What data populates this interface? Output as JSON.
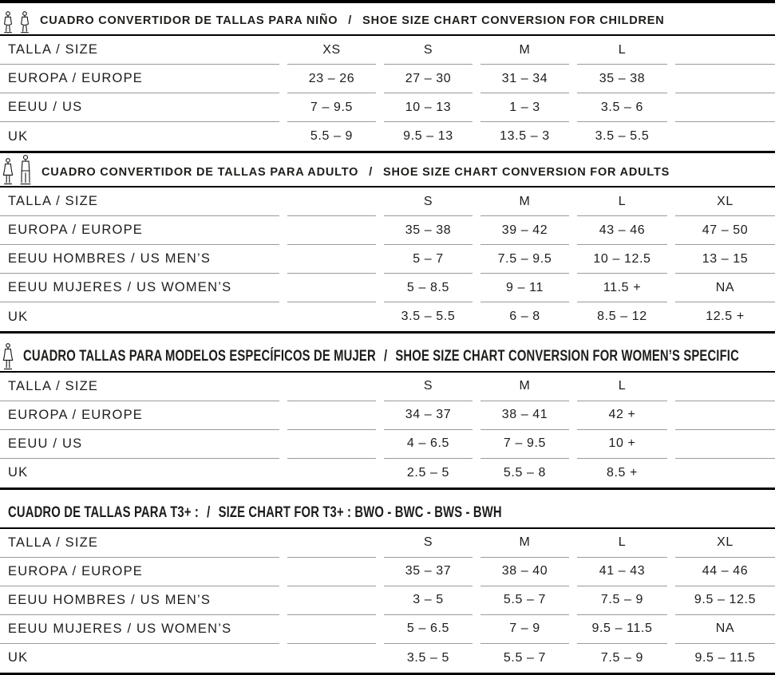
{
  "page": {
    "background": "#ffffff",
    "text_color": "#1d1d1b",
    "separator_color": "#9a9a9a",
    "divider_color": "#000000"
  },
  "sections": [
    {
      "id": "children",
      "icons": [
        "child-mannequin-icon",
        "child-mannequin-icon"
      ],
      "title_es": "CUADRO CONVERTIDOR DE TALLAS PARA NIÑO",
      "separator": "/",
      "title_en": "SHOE SIZE CHART CONVERSION FOR CHILDREN",
      "condensed": false,
      "rows": [
        {
          "label": "TALLA / SIZE",
          "values": [
            "XS",
            "S",
            "M",
            "L",
            ""
          ]
        },
        {
          "label": "EUROPA / EUROPE",
          "values": [
            "23 – 26",
            "27 – 30",
            "31 – 34",
            "35 – 38",
            ""
          ]
        },
        {
          "label": "EEUU / US",
          "values": [
            "7 – 9.5",
            "10 – 13",
            "1 – 3",
            "3.5 – 6",
            ""
          ]
        },
        {
          "label": "UK",
          "values": [
            "5.5 – 9",
            "9.5 – 13",
            "13.5 – 3",
            "3.5 – 5.5",
            ""
          ]
        }
      ]
    },
    {
      "id": "adults",
      "icons": [
        "woman-mannequin-icon",
        "man-mannequin-icon"
      ],
      "title_es": "CUADRO CONVERTIDOR DE TALLAS PARA ADULTO",
      "separator": "/",
      "title_en": "SHOE SIZE CHART CONVERSION FOR ADULTS",
      "condensed": false,
      "rows": [
        {
          "label": "TALLA / SIZE",
          "values": [
            "",
            "S",
            "M",
            "L",
            "XL"
          ]
        },
        {
          "label": "EUROPA / EUROPE",
          "values": [
            "",
            "35 – 38",
            "39 – 42",
            "43 – 46",
            "47 – 50"
          ]
        },
        {
          "label": "EEUU HOMBRES / US MEN’S",
          "values": [
            "",
            "5 – 7",
            "7.5 – 9.5",
            "10 – 12.5",
            "13 – 15"
          ]
        },
        {
          "label": "EEUU MUJERES / US WOMEN’S",
          "values": [
            "",
            "5 – 8.5",
            "9 – 11",
            "11.5 +",
            "NA"
          ]
        },
        {
          "label": "UK",
          "values": [
            "",
            "3.5 – 5.5",
            "6 – 8",
            "8.5 – 12",
            "12.5 +"
          ]
        }
      ]
    },
    {
      "id": "women-specific",
      "icons": [
        "woman-mannequin-icon"
      ],
      "title_es": "CUADRO TALLAS PARA MODELOS ESPECÍFICOS DE MUJER",
      "separator": "/",
      "title_en": "SHOE SIZE CHART CONVERSION FOR WOMEN’S SPECIFIC",
      "condensed": true,
      "rows": [
        {
          "label": "TALLA / SIZE",
          "values": [
            "",
            "S",
            "M",
            "L",
            ""
          ]
        },
        {
          "label": "EUROPA / EUROPE",
          "values": [
            "",
            "34 – 37",
            "38 – 41",
            "42 +",
            ""
          ]
        },
        {
          "label": "EEUU / US",
          "values": [
            "",
            "4 – 6.5",
            "7 – 9.5",
            "10 +",
            ""
          ]
        },
        {
          "label": "UK",
          "values": [
            "",
            "2.5 – 5",
            "5.5 – 8",
            "8.5 +",
            ""
          ]
        }
      ]
    },
    {
      "id": "t3plus",
      "icons": [],
      "title_es": "CUADRO DE TALLAS PARA T3+ :",
      "separator": "/",
      "title_en": "SIZE CHART FOR T3+ :  BWO - BWC - BWS - BWH",
      "condensed": true,
      "rows": [
        {
          "label": "TALLA / SIZE",
          "values": [
            "",
            "S",
            "M",
            "L",
            "XL"
          ]
        },
        {
          "label": "EUROPA / EUROPE",
          "values": [
            "",
            "35 – 37",
            "38 – 40",
            "41 – 43",
            "44 – 46"
          ]
        },
        {
          "label": "EEUU HOMBRES / US MEN’S",
          "values": [
            "",
            "3 – 5",
            "5.5 – 7",
            "7.5 – 9",
            "9.5 – 12.5"
          ]
        },
        {
          "label": "EEUU MUJERES / US WOMEN’S",
          "values": [
            "",
            "5 – 6.5",
            "7 – 9",
            "9.5 – 11.5",
            "NA"
          ]
        },
        {
          "label": "UK",
          "values": [
            "",
            "3.5 – 5",
            "5.5 – 7",
            "7.5 – 9",
            "9.5 – 11.5"
          ]
        }
      ]
    }
  ]
}
